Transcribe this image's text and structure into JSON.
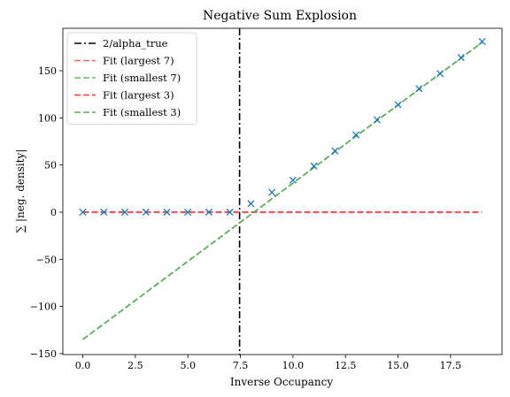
{
  "chart_data": {
    "type": "scatter",
    "title": "Negative Sum Explosion",
    "xlabel": "Inverse Occupancy",
    "ylabel": "∑ |neg. density|",
    "xlim": [
      -0.95,
      19.95
    ],
    "ylim": [
      -151,
      195
    ],
    "xticks": [
      0.0,
      2.5,
      5.0,
      7.5,
      10.0,
      12.5,
      15.0,
      17.5
    ],
    "xtick_labels": [
      "0.0",
      "2.5",
      "5.0",
      "7.5",
      "10.0",
      "12.5",
      "15.0",
      "17.5"
    ],
    "yticks": [
      -150,
      -100,
      -50,
      0,
      50,
      100,
      150
    ],
    "ytick_labels": [
      "−150",
      "−100",
      "−50",
      "0",
      "50",
      "100",
      "150"
    ],
    "grid": false,
    "legend_position": "top-left",
    "series": [
      {
        "name": "",
        "kind": "markers",
        "marker": "x",
        "color": "#1f77b4",
        "x": [
          0,
          1,
          2,
          3,
          4,
          5,
          6,
          7,
          8,
          9,
          10,
          11,
          12,
          13,
          14,
          15,
          16,
          17,
          18,
          19
        ],
        "y": [
          0,
          0,
          0,
          0,
          0,
          0,
          0,
          0,
          9,
          21,
          34,
          49,
          65,
          82,
          98,
          114,
          131,
          147,
          164,
          181
        ]
      },
      {
        "name": "2/alpha_true",
        "kind": "vline",
        "x": 7.46,
        "color": "#000000",
        "dash": "dashdot"
      },
      {
        "name": "Fit (largest 7)",
        "kind": "line",
        "color": "#e8696b",
        "dash": "dashed",
        "x": [
          0,
          19
        ],
        "y": [
          0,
          0
        ]
      },
      {
        "name": "Fit (smallest 7)",
        "kind": "line",
        "color": "#6ab86a",
        "dash": "dashed",
        "x": [
          0,
          19
        ],
        "y": [
          -135,
          180
        ]
      },
      {
        "name": "Fit (largest 3)",
        "kind": "line",
        "color": "#ef4040",
        "dash": "dashed",
        "x": [
          0,
          19
        ],
        "y": [
          0,
          0
        ]
      },
      {
        "name": "Fit (smallest 3)",
        "kind": "line",
        "color": "#5aaa5a",
        "dash": "dashed",
        "x": [
          0,
          19
        ],
        "y": [
          -135,
          180
        ]
      }
    ],
    "legend_order": [
      1,
      2,
      3,
      4,
      5
    ]
  }
}
